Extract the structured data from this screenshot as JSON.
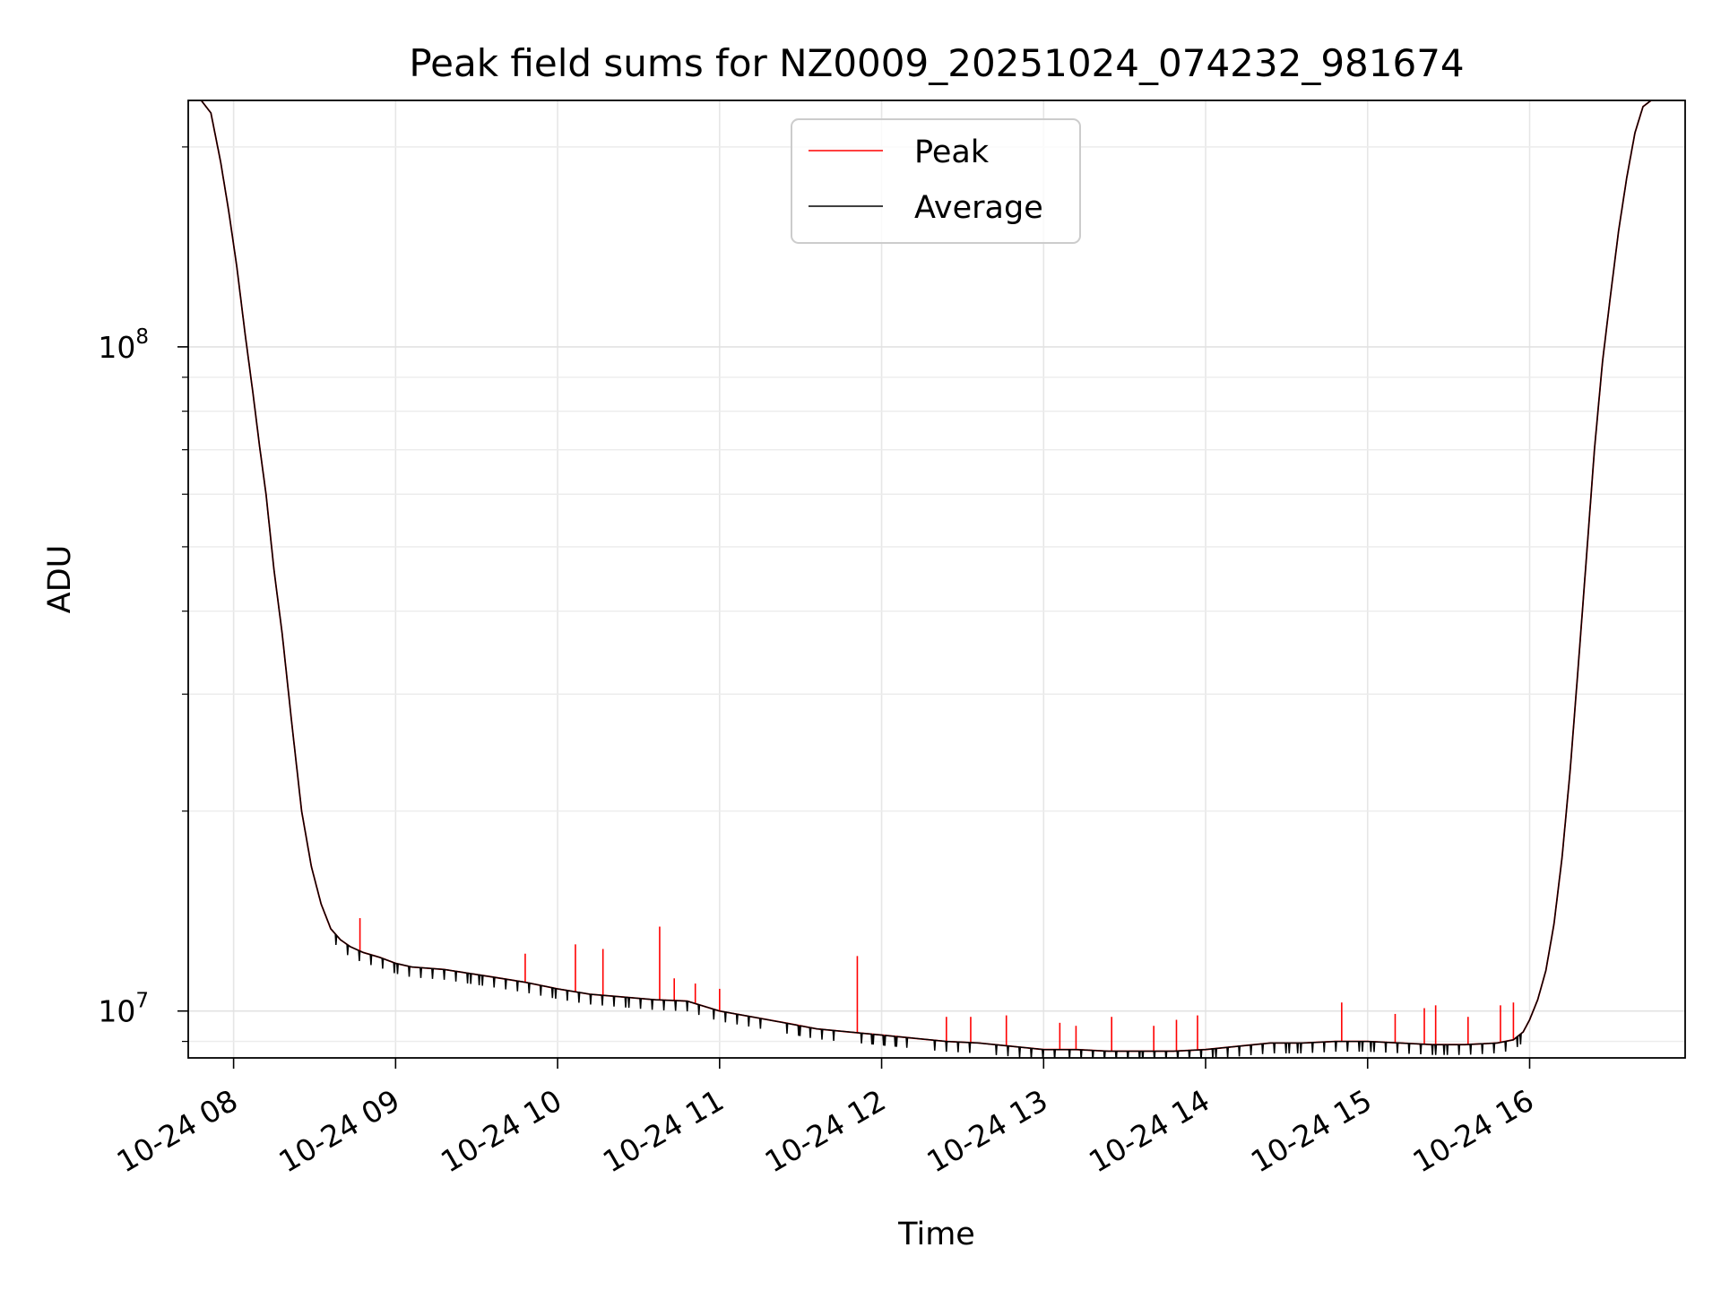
{
  "chart_data": {
    "type": "line",
    "title": "Peak field sums for NZ0009_20251024_074232_981674",
    "xlabel": "Time",
    "ylabel": "ADU",
    "yscale": "log",
    "xlim": [
      7.72,
      16.96
    ],
    "ylim": [
      8500000,
      235000000
    ],
    "grid": true,
    "legend_position": "upper-center",
    "x_ticks": [
      {
        "value": 8,
        "label": "10-24 08"
      },
      {
        "value": 9,
        "label": "10-24 09"
      },
      {
        "value": 10,
        "label": "10-24 10"
      },
      {
        "value": 11,
        "label": "10-24 11"
      },
      {
        "value": 12,
        "label": "10-24 12"
      },
      {
        "value": 13,
        "label": "10-24 13"
      },
      {
        "value": 14,
        "label": "10-24 14"
      },
      {
        "value": 15,
        "label": "10-24 15"
      },
      {
        "value": 16,
        "label": "10-24 16"
      }
    ],
    "y_ticks": [
      {
        "value": 10000000,
        "base": "10",
        "exp": "7"
      },
      {
        "value": 100000000,
        "base": "10",
        "exp": "8"
      }
    ],
    "y_minor_ticks": [
      9000000,
      20000000,
      30000000,
      40000000,
      50000000,
      60000000,
      70000000,
      80000000,
      90000000,
      200000000
    ],
    "series": [
      {
        "name": "Average",
        "color": "#000000",
        "x": [
          7.72,
          7.8,
          7.86,
          7.92,
          7.97,
          8.02,
          8.07,
          8.12,
          8.16,
          8.2,
          8.25,
          8.3,
          8.36,
          8.42,
          8.48,
          8.54,
          8.6,
          8.66,
          8.72,
          8.8,
          8.9,
          9.0,
          9.1,
          9.2,
          9.3,
          9.45,
          9.6,
          9.8,
          10.0,
          10.2,
          10.4,
          10.6,
          10.8,
          11.0,
          11.2,
          11.4,
          11.6,
          11.8,
          12.0,
          12.2,
          12.4,
          12.6,
          12.8,
          13.0,
          13.2,
          13.4,
          13.6,
          13.8,
          14.0,
          14.2,
          14.4,
          14.6,
          14.8,
          15.0,
          15.2,
          15.4,
          15.6,
          15.8,
          15.9,
          15.96,
          16.0,
          16.05,
          16.1,
          16.15,
          16.2,
          16.25,
          16.3,
          16.35,
          16.4,
          16.45,
          16.5,
          16.55,
          16.6,
          16.65,
          16.7,
          16.75,
          16.8,
          16.85,
          16.9,
          16.96
        ],
        "y": [
          235000000,
          235000000,
          225000000,
          190000000,
          160000000,
          132000000,
          105000000,
          85000000,
          71000000,
          60000000,
          46000000,
          37000000,
          27000000,
          20000000,
          16500000,
          14500000,
          13300000,
          12800000,
          12500000,
          12250000,
          12050000,
          11800000,
          11650000,
          11600000,
          11550000,
          11400000,
          11250000,
          11050000,
          10800000,
          10600000,
          10500000,
          10400000,
          10350000,
          10000000,
          9800000,
          9600000,
          9400000,
          9300000,
          9200000,
          9100000,
          9000000,
          8950000,
          8850000,
          8750000,
          8750000,
          8700000,
          8700000,
          8700000,
          8750000,
          8850000,
          8950000,
          8950000,
          9000000,
          9000000,
          8950000,
          8900000,
          8900000,
          8950000,
          9050000,
          9300000,
          9700000,
          10400000,
          11500000,
          13500000,
          17000000,
          23000000,
          33000000,
          48000000,
          70000000,
          95000000,
          120000000,
          150000000,
          180000000,
          210000000,
          230000000,
          235000000,
          235000000,
          235000000,
          235000000,
          235000000
        ]
      },
      {
        "name": "Peak",
        "color": "#ff0000",
        "note": "follows Average curve with upward spikes",
        "spikes": [
          {
            "x": 8.78,
            "y": 13800000
          },
          {
            "x": 9.8,
            "y": 12200000
          },
          {
            "x": 10.11,
            "y": 12600000
          },
          {
            "x": 10.28,
            "y": 12400000
          },
          {
            "x": 10.63,
            "y": 13400000
          },
          {
            "x": 10.72,
            "y": 11200000
          },
          {
            "x": 10.85,
            "y": 11000000
          },
          {
            "x": 11.0,
            "y": 10800000
          },
          {
            "x": 11.85,
            "y": 12100000
          },
          {
            "x": 12.4,
            "y": 9800000
          },
          {
            "x": 12.55,
            "y": 9800000
          },
          {
            "x": 12.77,
            "y": 9850000
          },
          {
            "x": 13.1,
            "y": 9600000
          },
          {
            "x": 13.2,
            "y": 9500000
          },
          {
            "x": 13.42,
            "y": 9800000
          },
          {
            "x": 13.68,
            "y": 9500000
          },
          {
            "x": 13.82,
            "y": 9700000
          },
          {
            "x": 13.95,
            "y": 9850000
          },
          {
            "x": 14.84,
            "y": 10300000
          },
          {
            "x": 15.17,
            "y": 9900000
          },
          {
            "x": 15.35,
            "y": 10100000
          },
          {
            "x": 15.42,
            "y": 10200000
          },
          {
            "x": 15.62,
            "y": 9800000
          },
          {
            "x": 15.82,
            "y": 10200000
          },
          {
            "x": 15.9,
            "y": 10300000
          }
        ]
      }
    ],
    "legend": [
      {
        "label": "Peak",
        "color": "#ff0000"
      },
      {
        "label": "Average",
        "color": "#000000"
      }
    ]
  }
}
